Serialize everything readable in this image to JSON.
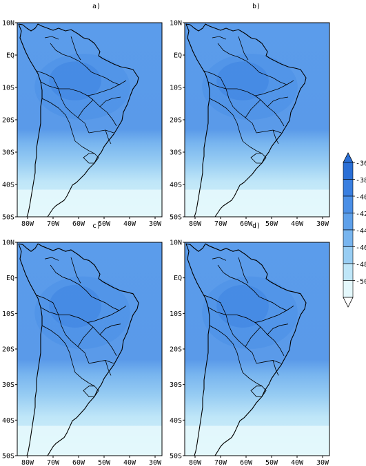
{
  "panels": [
    {
      "title": "a)"
    },
    {
      "title": "b)"
    },
    {
      "title": "c)"
    },
    {
      "title": "d)"
    }
  ],
  "lat_ticks": [
    "10N",
    "EQ",
    "10S",
    "20S",
    "30S",
    "40S",
    "50S"
  ],
  "lon_ticks": [
    "80W",
    "70W",
    "60W",
    "50W",
    "40W",
    "30W"
  ],
  "colorbar": {
    "labels": [
      "-36",
      "-38",
      "-40",
      "-42",
      "-44",
      "-46",
      "-48",
      "-50"
    ],
    "colors": [
      "#2a6fd6",
      "#3a7fe0",
      "#4b8fe6",
      "#5ea0ea",
      "#78b5ef",
      "#98cdf3",
      "#bfe6f8",
      "#e4f8fc"
    ]
  },
  "colors": {
    "band_50": "#e4f8fc",
    "band_48": "#bfe6f8",
    "band_46": "#98cdf3",
    "band_44": "#78b5ef",
    "band_42": "#5ea0ea",
    "band_40": "#4b8fe6",
    "band_38": "#3a7fe0"
  }
}
